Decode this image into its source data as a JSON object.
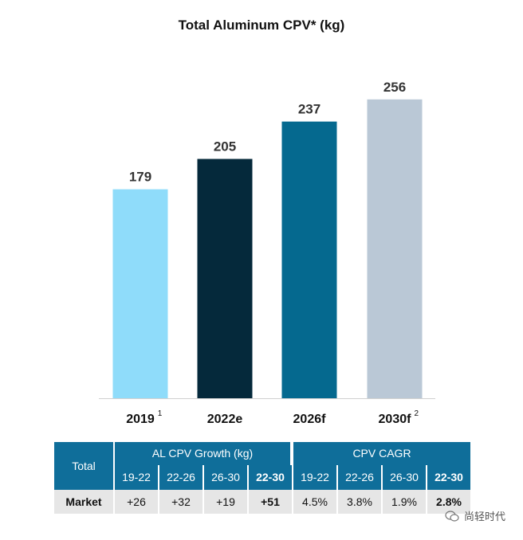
{
  "chart_data": {
    "type": "bar",
    "title": "Total Aluminum CPV* (kg)",
    "categories": [
      "2019",
      "2022e",
      "2026f",
      "2030f"
    ],
    "category_footnotes": [
      "1",
      "",
      "",
      "2"
    ],
    "values": [
      179,
      205,
      237,
      256
    ],
    "colors": [
      "#8fdcfa",
      "#05293b",
      "#05698f",
      "#bac8d6"
    ],
    "ylim": [
      0,
      260
    ],
    "xlabel": "",
    "ylabel": ""
  },
  "table": {
    "total_label": "Total",
    "growth_header": "AL CPV Growth (kg)",
    "cagr_header": "CPV CAGR",
    "periods": [
      "19-22",
      "22-26",
      "26-30",
      "22-30"
    ],
    "row": {
      "label": "Market",
      "growth": [
        "+26",
        "+32",
        "+19",
        "+51"
      ],
      "cagr": [
        "4.5%",
        "3.8%",
        "1.9%",
        "2.8%"
      ]
    }
  },
  "watermark": "尚轻时代"
}
